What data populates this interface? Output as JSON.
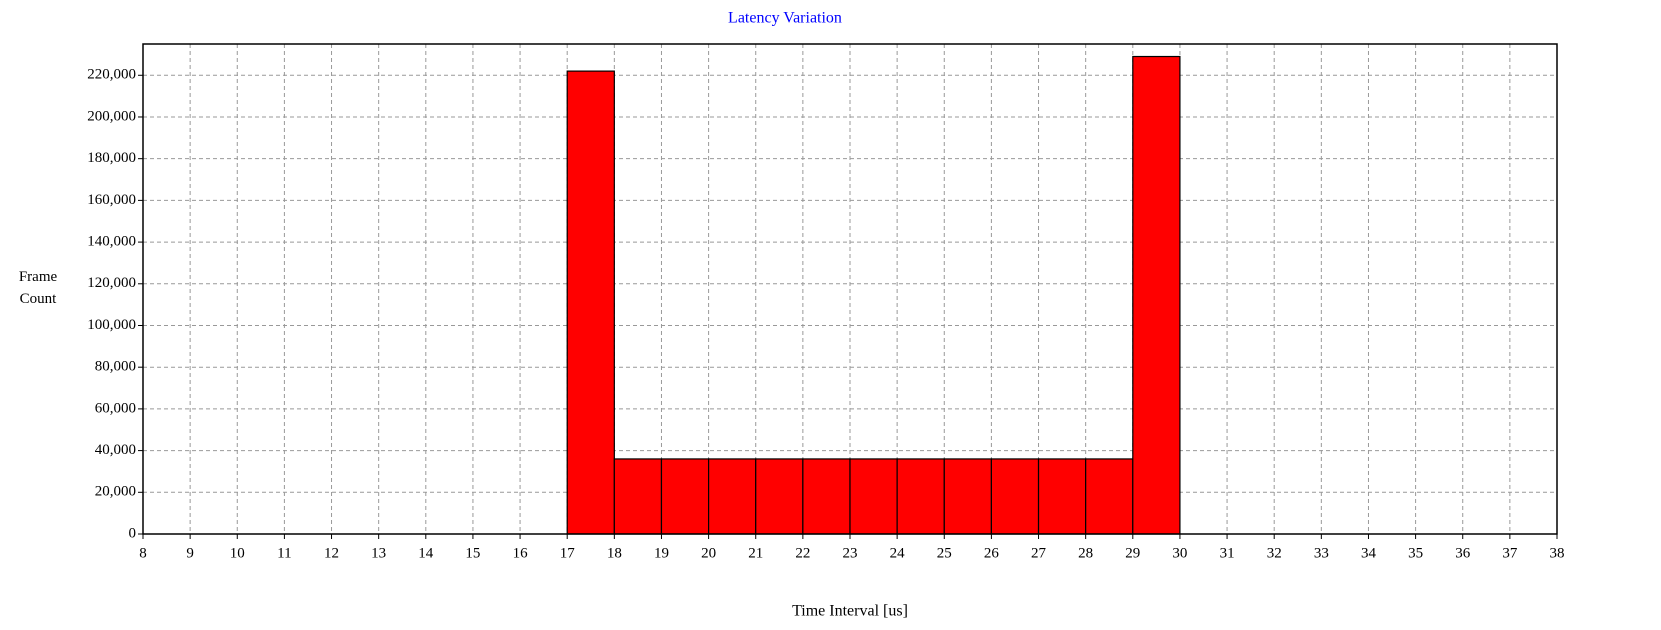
{
  "chart_data": {
    "type": "histogram",
    "title": "Latency Variation",
    "xlabel": "Time Interval [us]",
    "ylabel": "Frame Count",
    "bins": [
      8,
      9,
      10,
      11,
      12,
      13,
      14,
      15,
      16,
      17,
      18,
      19,
      20,
      21,
      22,
      23,
      24,
      25,
      26,
      27,
      28,
      29,
      30,
      31,
      32,
      33,
      34,
      35,
      36,
      37,
      38
    ],
    "values": [
      0,
      0,
      0,
      0,
      0,
      0,
      0,
      0,
      0,
      222000,
      36000,
      36000,
      36000,
      36000,
      36000,
      36000,
      36000,
      36000,
      36000,
      36000,
      36000,
      229000,
      0,
      0,
      0,
      0,
      0,
      0,
      0,
      0
    ],
    "color": "#ff0000",
    "xlim": [
      8,
      38
    ],
    "xticks": [
      8,
      9,
      10,
      11,
      12,
      13,
      14,
      15,
      16,
      17,
      18,
      19,
      20,
      21,
      22,
      23,
      24,
      25,
      26,
      27,
      28,
      29,
      30,
      31,
      32,
      33,
      34,
      35,
      36,
      37,
      38
    ],
    "ylim": [
      0,
      235000
    ],
    "yticks": [
      0,
      {
        "value": 20000,
        "label": "20,000"
      },
      {
        "value": 40000,
        "label": "40,000"
      },
      {
        "value": 60000,
        "label": "60,000"
      },
      {
        "value": 80000,
        "label": "80,000"
      },
      {
        "value": 100000,
        "label": "100,000"
      },
      {
        "value": 120000,
        "label": "120,000"
      },
      {
        "value": 140000,
        "label": "140,000"
      },
      {
        "value": 160000,
        "label": "160,000"
      },
      {
        "value": 180000,
        "label": "180,000"
      },
      {
        "value": 200000,
        "label": "200,000"
      },
      {
        "value": 220000,
        "label": "220,000"
      }
    ],
    "grid": true
  }
}
